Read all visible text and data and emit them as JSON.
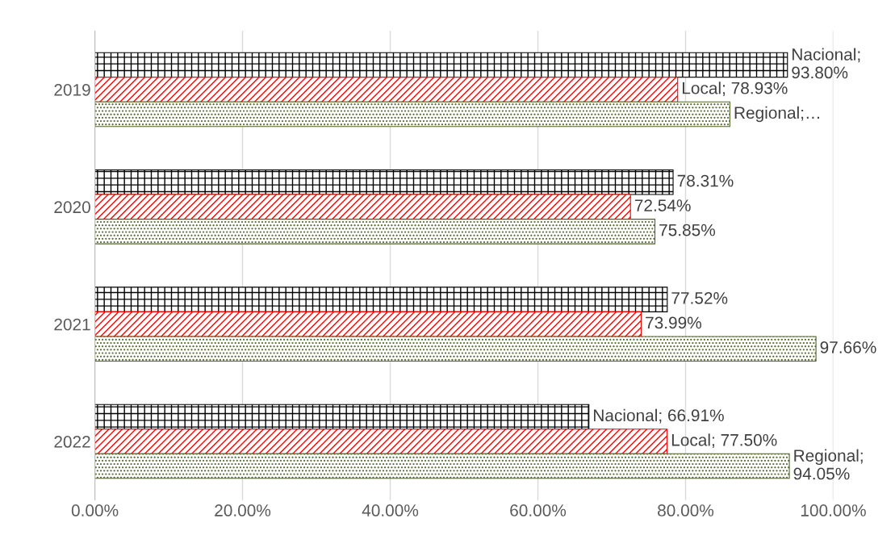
{
  "chart_data": {
    "type": "bar",
    "orientation": "horizontal",
    "categories": [
      "2019",
      "2020",
      "2021",
      "2022"
    ],
    "series": [
      {
        "color": "#000000",
        "values": [
          93.8,
          78.31,
          77.52,
          66.91
        ],
        "value_labels": [
          "Nacional; 93.80%",
          "78.31%",
          "77.52%",
          "Nacional; 66.91%"
        ]
      },
      {
        "color": "#ff0000",
        "values": [
          78.93,
          72.54,
          73.99,
          77.5
        ],
        "value_labels": [
          "Local; 78.93%",
          "72.54%",
          "73.99%",
          "Local; 77.50%"
        ]
      },
      {
        "color": "#4f6228",
        "values": [
          86,
          75.85,
          97.66,
          94.05
        ],
        "value_labels": [
          "Regional;…",
          "75.85%",
          "97.66%",
          "Regional; 94.05%"
        ]
      }
    ],
    "xlim": [
      0,
      100
    ],
    "xticks": [
      {
        "value": 0,
        "label": "0.00%"
      },
      {
        "value": 20,
        "label": "20.00%"
      },
      {
        "value": 40,
        "label": "40.00%"
      },
      {
        "value": 60,
        "label": "60.00%"
      },
      {
        "value": 80,
        "label": "80.00%"
      },
      {
        "value": 100,
        "label": "100.00%"
      }
    ],
    "grid": "x",
    "legend": false
  }
}
